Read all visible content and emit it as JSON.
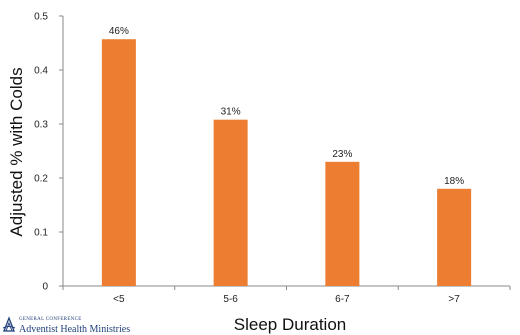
{
  "chart_data": {
    "type": "bar",
    "categories": [
      "<5",
      "5-6",
      "6-7",
      ">7"
    ],
    "values": [
      0.457,
      0.308,
      0.23,
      0.18
    ],
    "data_labels": [
      "46%",
      "31%",
      "23%",
      "18%"
    ],
    "ylim": [
      0,
      0.5
    ],
    "yticks": [
      0,
      0.1,
      0.2,
      0.3,
      0.4,
      0.5
    ],
    "ytick_labels": [
      "0",
      "0.1",
      "0.2",
      "0.3",
      "0.4",
      "0.5"
    ],
    "xlabel": "Sleep Duration",
    "ylabel": "Adjusted % with Colds",
    "grid": false,
    "legend": "none",
    "bar_color": "#ED7D31"
  },
  "logo": {
    "line1": "GENERAL CONFERENCE",
    "line2": "Adventist Health Ministries"
  }
}
